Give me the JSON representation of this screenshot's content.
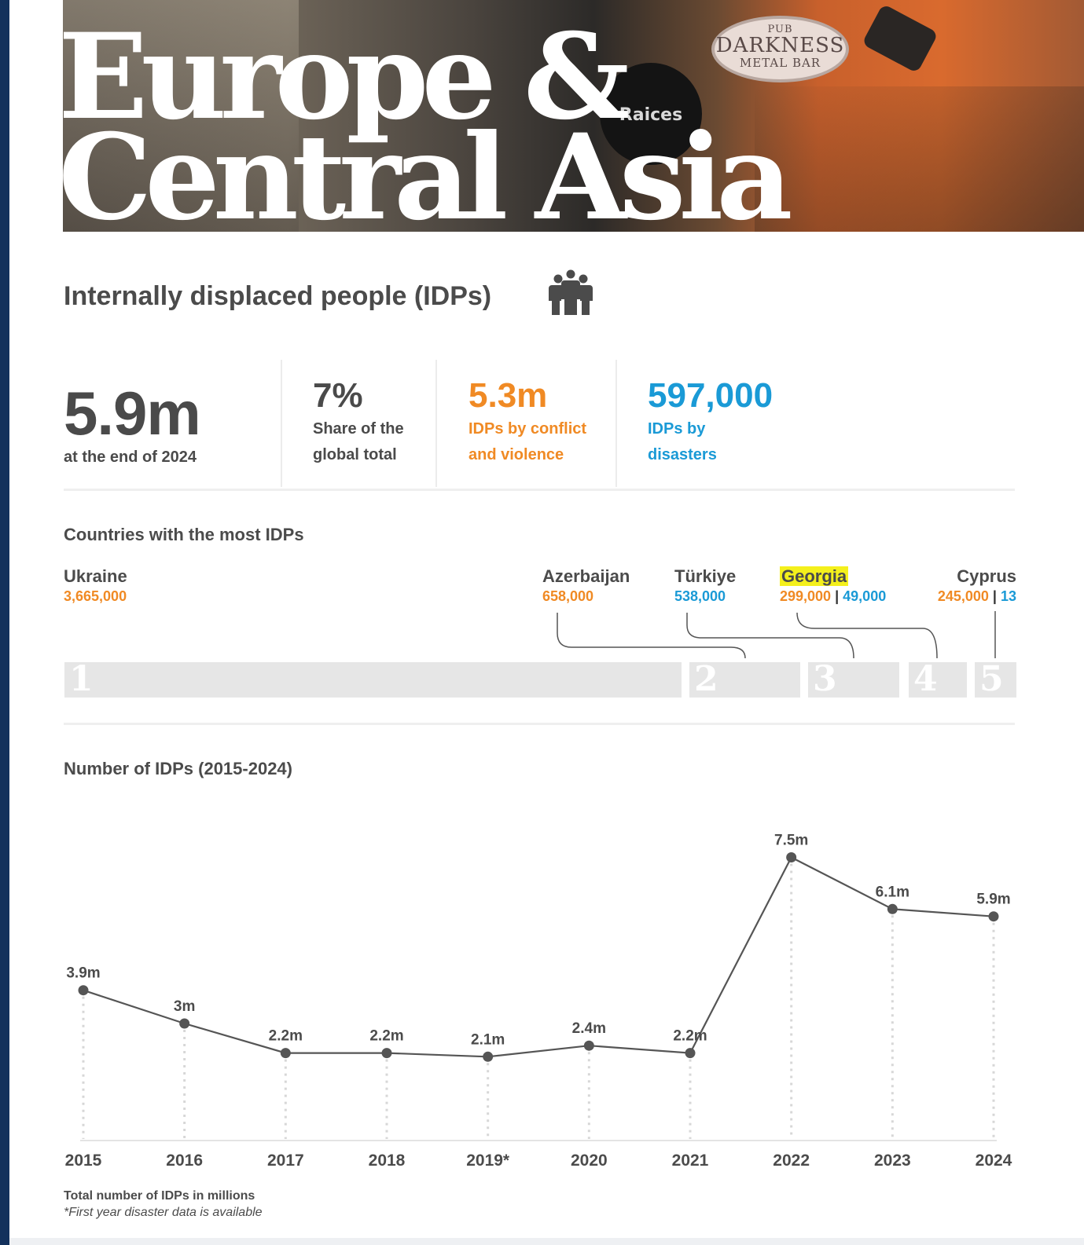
{
  "hero": {
    "title_line1": "Europe &",
    "title_line2": "Central Asia",
    "sign_oval_top": "PUB",
    "sign_oval_main": "DARKNESS",
    "sign_oval_bottom": "METAL BAR",
    "sign_round": "Raices"
  },
  "idp": {
    "heading": "Internally displaced people (IDPs)",
    "icon": "people-group-icon"
  },
  "stats": {
    "total_value": "5.9m",
    "total_label": "at the end of 2024",
    "share_value": "7%",
    "share_label_1": "Share of the",
    "share_label_2": "global total",
    "conflict_value": "5.3m",
    "conflict_label_1": "IDPs by conflict",
    "conflict_label_2": "and violence",
    "disaster_value": "597,000",
    "disaster_label_1": "IDPs by",
    "disaster_label_2": "disasters"
  },
  "colors": {
    "conflict": "#f08a24",
    "disaster": "#1a9ad6",
    "highlight": "#f4f01c",
    "line": "#555555",
    "navy": "#13315c"
  },
  "countries": {
    "title": "Countries with the most IDPs",
    "items": [
      {
        "rank": "1",
        "name": "Ukraine",
        "conflict": "3,665,000",
        "disaster": "",
        "total": 3665000
      },
      {
        "rank": "2",
        "name": "Azerbaijan",
        "conflict": "658,000",
        "disaster": "",
        "total": 658000
      },
      {
        "rank": "3",
        "name": "Türkiye",
        "conflict": "",
        "disaster": "538,000",
        "total": 538000
      },
      {
        "rank": "4",
        "name": "Georgia",
        "conflict": "299,000",
        "disaster": "49,000",
        "total": 348000
      },
      {
        "rank": "5",
        "name": "Cyprus",
        "conflict": "245,000",
        "disaster": "13",
        "total": 245013
      }
    ]
  },
  "chart_data": {
    "type": "line",
    "title": "Number of IDPs (2015-2024)",
    "categories": [
      "2015",
      "2016",
      "2017",
      "2018",
      "2019*",
      "2020",
      "2021",
      "2022",
      "2023",
      "2024"
    ],
    "values": [
      3.9,
      3,
      2.2,
      2.2,
      2.1,
      2.4,
      2.2,
      7.5,
      6.1,
      5.9
    ],
    "labels": [
      "3.9m",
      "3m",
      "2.2m",
      "2.2m",
      "2.1m",
      "2.4m",
      "2.2m",
      "7.5m",
      "6.1m",
      "5.9m"
    ],
    "ylabel": "Total number of IDPs in millions",
    "grid": false
  },
  "footnotes": {
    "unit_note": "Total number of IDPs in millions",
    "asterisk_note": "*First year disaster data is available"
  }
}
